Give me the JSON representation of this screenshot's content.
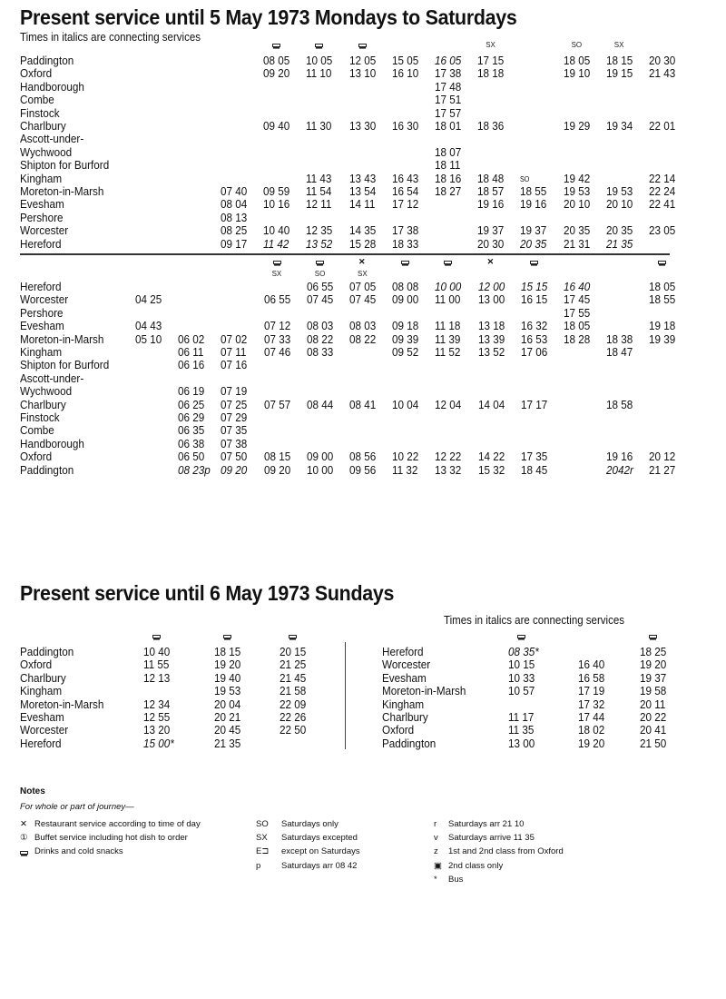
{
  "weekday": {
    "title": "Present service until 5 May 1973 Mondays to Saturdays",
    "italic_note": "Times in italics are connecting services",
    "down": {
      "headers": [
        "",
        "snack",
        "snack",
        "snack",
        "",
        "",
        "SX",
        "",
        "SO",
        "SX",
        ""
      ],
      "rows": [
        {
          "station": "Paddington",
          "times": [
            "",
            "08 05",
            "10 05",
            "12 05",
            "15 05",
            "16 05",
            "17 15",
            "",
            "18 05",
            "18 15",
            "20 30"
          ],
          "italic": [
            5
          ]
        },
        {
          "station": "Oxford",
          "times": [
            "",
            "09 20",
            "11 10",
            "13 10",
            "16 10",
            "17 38",
            "18 18",
            "",
            "19 10",
            "19 15",
            "21 43"
          ],
          "italic": []
        },
        {
          "station": "Handborough",
          "times": [
            "",
            "",
            "",
            "",
            "",
            "17 48",
            "",
            "",
            "",
            "",
            ""
          ],
          "italic": []
        },
        {
          "station": "Combe",
          "times": [
            "",
            "",
            "",
            "",
            "",
            "17 51",
            "",
            "",
            "",
            "",
            ""
          ],
          "italic": []
        },
        {
          "station": "Finstock",
          "times": [
            "",
            "",
            "",
            "",
            "",
            "17 57",
            "",
            "",
            "",
            "",
            ""
          ],
          "italic": []
        },
        {
          "station": "Charlbury",
          "times": [
            "",
            "09 40",
            "11 30",
            "13 30",
            "16 30",
            "18 01",
            "18 36",
            "",
            "19 29",
            "19 34",
            "22 01"
          ],
          "italic": []
        },
        {
          "station": "Ascott-under-",
          "times": [
            "",
            "",
            "",
            "",
            "",
            "",
            "",
            "",
            "",
            "",
            ""
          ],
          "italic": []
        },
        {
          "station": "Wychwood",
          "times": [
            "",
            "",
            "",
            "",
            "",
            "18 07",
            "",
            "",
            "",
            "",
            ""
          ],
          "italic": []
        },
        {
          "station": "Shipton for Burford",
          "times": [
            "",
            "",
            "",
            "",
            "",
            "18 11",
            "",
            "",
            "",
            "",
            ""
          ],
          "italic": []
        },
        {
          "station": "Kingham",
          "times": [
            "",
            "",
            "11 43",
            "13 43",
            "16 43",
            "18 16",
            "18 48",
            "SO",
            "19 42",
            "",
            "22 14"
          ],
          "italic": []
        },
        {
          "station": "Moreton-in-Marsh",
          "times": [
            "07 40",
            "09 59",
            "11 54",
            "13 54",
            "16 54",
            "18 27",
            "18 57",
            "18 55",
            "19 53",
            "19 53",
            "22 24"
          ],
          "italic": []
        },
        {
          "station": "Evesham",
          "times": [
            "08 04",
            "10 16",
            "12 11",
            "14 11",
            "17 12",
            "",
            "19 16",
            "19 16",
            "20 10",
            "20 10",
            "22 41"
          ],
          "italic": []
        },
        {
          "station": "Pershore",
          "times": [
            "08 13",
            "",
            "",
            "",
            "",
            "",
            "",
            "",
            "",
            "",
            ""
          ],
          "italic": []
        },
        {
          "station": "Worcester",
          "times": [
            "08 25",
            "10 40",
            "12 35",
            "14 35",
            "17 38",
            "",
            "19 37",
            "19 37",
            "20 35",
            "20 35",
            "23 05"
          ],
          "italic": []
        },
        {
          "station": "Hereford",
          "times": [
            "09 17",
            "11 42",
            "13 52",
            "15 28",
            "18 33",
            "",
            "20 30",
            "20 35",
            "21 31",
            "21 35",
            ""
          ],
          "italic": [
            1,
            2,
            7,
            9
          ]
        }
      ]
    },
    "up": {
      "headers": [
        "",
        "",
        "",
        "snack",
        "snack",
        "restaurant",
        "snack",
        "snack",
        "restaurant",
        "snack",
        "",
        "",
        "snack"
      ],
      "subheaders": [
        "",
        "",
        "",
        "SX",
        "SO",
        "SX",
        "",
        "",
        "",
        "",
        "",
        "",
        ""
      ],
      "rows": [
        {
          "station": "Hereford",
          "times": [
            "",
            "",
            "",
            "",
            "06 55",
            "07 05",
            "08 08",
            "10 00",
            "12 00",
            "15 15",
            "16 40",
            "",
            "18 05"
          ],
          "italic": [
            7,
            8,
            9,
            10
          ]
        },
        {
          "station": "Worcester",
          "times": [
            "04 25",
            "",
            "",
            "06 55",
            "07 45",
            "07 45",
            "09 00",
            "11 00",
            "13 00",
            "16 15",
            "17 45",
            "",
            "18 55"
          ],
          "italic": []
        },
        {
          "station": "Pershore",
          "times": [
            "",
            "",
            "",
            "",
            "",
            "",
            "",
            "",
            "",
            "",
            "17 55",
            "",
            ""
          ],
          "italic": []
        },
        {
          "station": "Evesham",
          "times": [
            "04 43",
            "",
            "",
            "07 12",
            "08 03",
            "08 03",
            "09 18",
            "11 18",
            "13 18",
            "16 32",
            "18 05",
            "",
            "19 18"
          ],
          "italic": []
        },
        {
          "station": "Moreton-in-Marsh",
          "times": [
            "05 10",
            "06 02",
            "07 02",
            "07 33",
            "08 22",
            "08 22",
            "09 39",
            "11 39",
            "13 39",
            "16 53",
            "18 28",
            "18 38",
            "19 39"
          ],
          "italic": []
        },
        {
          "station": "Kingham",
          "times": [
            "",
            "06 11",
            "07 11",
            "07 46",
            "08 33",
            "",
            "09 52",
            "11 52",
            "13 52",
            "17 06",
            "",
            "18 47",
            ""
          ],
          "italic": []
        },
        {
          "station": "Shipton for Burford",
          "times": [
            "",
            "06 16",
            "07 16",
            "",
            "",
            "",
            "",
            "",
            "",
            "",
            "",
            "",
            ""
          ],
          "italic": []
        },
        {
          "station": "Ascott-under-",
          "times": [
            "",
            "",
            "",
            "",
            "",
            "",
            "",
            "",
            "",
            "",
            "",
            "",
            ""
          ],
          "italic": []
        },
        {
          "station": "Wychwood",
          "times": [
            "",
            "06 19",
            "07 19",
            "",
            "",
            "",
            "",
            "",
            "",
            "",
            "",
            "",
            ""
          ],
          "italic": []
        },
        {
          "station": "Charlbury",
          "times": [
            "",
            "06 25",
            "07 25",
            "07 57",
            "08 44",
            "08 41",
            "10 04",
            "12 04",
            "14 04",
            "17 17",
            "",
            "18 58",
            ""
          ],
          "italic": []
        },
        {
          "station": "Finstock",
          "times": [
            "",
            "06 29",
            "07 29",
            "",
            "",
            "",
            "",
            "",
            "",
            "",
            "",
            "",
            ""
          ],
          "italic": []
        },
        {
          "station": "Combe",
          "times": [
            "",
            "06 35",
            "07 35",
            "",
            "",
            "",
            "",
            "",
            "",
            "",
            "",
            "",
            ""
          ],
          "italic": []
        },
        {
          "station": "Handborough",
          "times": [
            "",
            "06 38",
            "07 38",
            "",
            "",
            "",
            "",
            "",
            "",
            "",
            "",
            "",
            ""
          ],
          "italic": []
        },
        {
          "station": "Oxford",
          "times": [
            "",
            "06 50",
            "07 50",
            "08 15",
            "09 00",
            "08 56",
            "10 22",
            "12 22",
            "14 22",
            "17 35",
            "",
            "19 16",
            "20 12"
          ],
          "italic": []
        },
        {
          "station": "Paddington",
          "times": [
            "",
            "08 23p",
            "09 20",
            "09 20",
            "10 00",
            "09 56",
            "11 32",
            "13 32",
            "15 32",
            "18 45",
            "",
            "2042r",
            "21 27"
          ],
          "italic": [
            1,
            2,
            11
          ]
        }
      ]
    }
  },
  "sunday": {
    "title": "Present service until 6 May 1973 Sundays",
    "italic_note": "Times in italics are connecting services",
    "down": {
      "headers": [
        "snack",
        "snack",
        "snack"
      ],
      "rows": [
        {
          "station": "Paddington",
          "times": [
            "10 40",
            "18 15",
            "20 15"
          ],
          "italic": []
        },
        {
          "station": "Oxford",
          "times": [
            "11 55",
            "19 20",
            "21 25"
          ],
          "italic": []
        },
        {
          "station": "Charlbury",
          "times": [
            "12 13",
            "19 40",
            "21 45"
          ],
          "italic": []
        },
        {
          "station": "Kingham",
          "times": [
            "",
            "19 53",
            "21 58"
          ],
          "italic": []
        },
        {
          "station": "Moreton-in-Marsh",
          "times": [
            "12 34",
            "20 04",
            "22 09"
          ],
          "italic": []
        },
        {
          "station": "Evesham",
          "times": [
            "12 55",
            "20 21",
            "22 26"
          ],
          "italic": []
        },
        {
          "station": "Worcester",
          "times": [
            "13 20",
            "20 45",
            "22 50"
          ],
          "italic": []
        },
        {
          "station": "Hereford",
          "times": [
            "15 00*",
            "21 35",
            ""
          ],
          "italic": [
            0
          ]
        }
      ]
    },
    "up": {
      "headers": [
        "snack",
        "",
        "snack"
      ],
      "rows": [
        {
          "station": "Hereford",
          "times": [
            "08 35*",
            "",
            "18 25"
          ],
          "italic": [
            0
          ]
        },
        {
          "station": "Worcester",
          "times": [
            "10 15",
            "16 40",
            "19 20"
          ],
          "italic": []
        },
        {
          "station": "Evesham",
          "times": [
            "10 33",
            "16 58",
            "19 37"
          ],
          "italic": []
        },
        {
          "station": "Moreton-in-Marsh",
          "times": [
            "10 57",
            "17 19",
            "19 58"
          ],
          "italic": []
        },
        {
          "station": "Kingham",
          "times": [
            "",
            "17 32",
            "20 11"
          ],
          "italic": []
        },
        {
          "station": "Charlbury",
          "times": [
            "11 17",
            "17 44",
            "20 22"
          ],
          "italic": []
        },
        {
          "station": "Oxford",
          "times": [
            "11 35",
            "18 02",
            "20 41"
          ],
          "italic": []
        },
        {
          "station": "Paddington",
          "times": [
            "13 00",
            "19 20",
            "21 50"
          ],
          "italic": []
        }
      ]
    }
  },
  "notes": {
    "heading": "Notes",
    "intro": "For whole or part of journey—",
    "columns": [
      [
        {
          "key": "✕",
          "icon": "restaurant-icon",
          "text": "Restaurant service according to time of day"
        },
        {
          "key": "①",
          "icon": "buffet-icon",
          "text": "Buffet service including hot dish to order"
        },
        {
          "key": "⊐",
          "icon": "snack-icon",
          "text": "Drinks and cold snacks"
        }
      ],
      [
        {
          "key": "SO",
          "text": "Saturdays only"
        },
        {
          "key": "SX",
          "text": "Saturdays excepted"
        },
        {
          "key": "E⊐",
          "text": "except on Saturdays"
        },
        {
          "key": "p",
          "text": "Saturdays arr 08 42"
        }
      ],
      [
        {
          "key": "r",
          "text": "Saturdays arr 21 10"
        },
        {
          "key": "v",
          "text": "Saturdays arrive 11 35"
        },
        {
          "key": "z",
          "text": "1st and 2nd class from Oxford"
        },
        {
          "key": "▣",
          "icon": "second-class-icon",
          "text": "2nd class only"
        },
        {
          "key": "*",
          "text": "Bus"
        }
      ]
    ]
  }
}
